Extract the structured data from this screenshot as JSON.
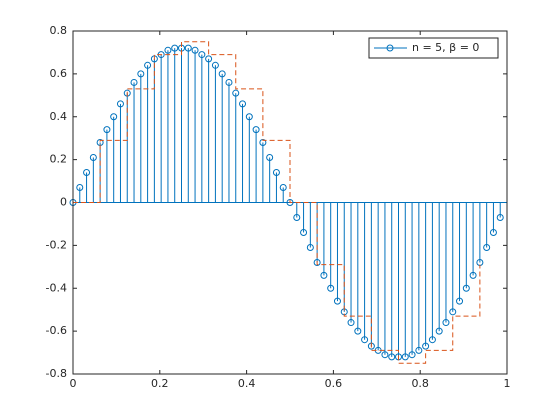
{
  "chart_data": {
    "type": "stem",
    "xlim": [
      0,
      1
    ],
    "ylim": [
      -0.8,
      0.8
    ],
    "xticks": [
      0,
      0.2,
      0.4,
      0.6,
      0.8,
      1
    ],
    "yticks": [
      -0.8,
      -0.6,
      -0.4,
      -0.2,
      0,
      0.2,
      0.4,
      0.6,
      0.8
    ],
    "legend": "top-right",
    "series": [
      {
        "name": "n = 5, β = 0",
        "type": "stem",
        "color": "#0072bd",
        "x": [
          0,
          0.015625,
          0.03125,
          0.046875,
          0.0625,
          0.078125,
          0.09375,
          0.109375,
          0.125,
          0.140625,
          0.15625,
          0.171875,
          0.1875,
          0.203125,
          0.21875,
          0.234375,
          0.25,
          0.265625,
          0.28125,
          0.296875,
          0.3125,
          0.328125,
          0.34375,
          0.359375,
          0.375,
          0.390625,
          0.40625,
          0.421875,
          0.4375,
          0.453125,
          0.46875,
          0.484375,
          0.5,
          0.515625,
          0.53125,
          0.546875,
          0.5625,
          0.578125,
          0.59375,
          0.609375,
          0.625,
          0.640625,
          0.65625,
          0.671875,
          0.6875,
          0.703125,
          0.71875,
          0.734375,
          0.75,
          0.765625,
          0.78125,
          0.796875,
          0.8125,
          0.828125,
          0.84375,
          0.859375,
          0.875,
          0.890625,
          0.90625,
          0.921875,
          0.9375,
          0.953125,
          0.96875,
          0.984375
        ],
        "values": [
          0,
          0.07,
          0.14,
          0.21,
          0.28,
          0.34,
          0.4,
          0.46,
          0.51,
          0.56,
          0.6,
          0.64,
          0.67,
          0.69,
          0.71,
          0.72,
          0.72,
          0.72,
          0.71,
          0.69,
          0.67,
          0.64,
          0.6,
          0.56,
          0.51,
          0.46,
          0.4,
          0.34,
          0.28,
          0.21,
          0.14,
          0.07,
          0,
          -0.07,
          -0.14,
          -0.21,
          -0.28,
          -0.34,
          -0.4,
          -0.46,
          -0.51,
          -0.56,
          -0.6,
          -0.64,
          -0.67,
          -0.69,
          -0.71,
          -0.72,
          -0.72,
          -0.72,
          -0.71,
          -0.69,
          -0.67,
          -0.64,
          -0.6,
          -0.56,
          -0.51,
          -0.46,
          -0.4,
          -0.34,
          -0.28,
          -0.21,
          -0.14,
          -0.07
        ]
      },
      {
        "type": "stairs",
        "color": "#d95319",
        "x": [
          0,
          0.0625,
          0.125,
          0.1875,
          0.25,
          0.3125,
          0.375,
          0.4375,
          0.5,
          0.5625,
          0.625,
          0.6875,
          0.75,
          0.8125,
          0.875,
          0.9375
        ],
        "values": [
          0,
          0.29,
          0.53,
          0.69,
          0.75,
          0.69,
          0.53,
          0.29,
          0,
          -0.29,
          -0.53,
          -0.69,
          -0.75,
          -0.69,
          -0.53,
          -0.29
        ]
      }
    ]
  }
}
